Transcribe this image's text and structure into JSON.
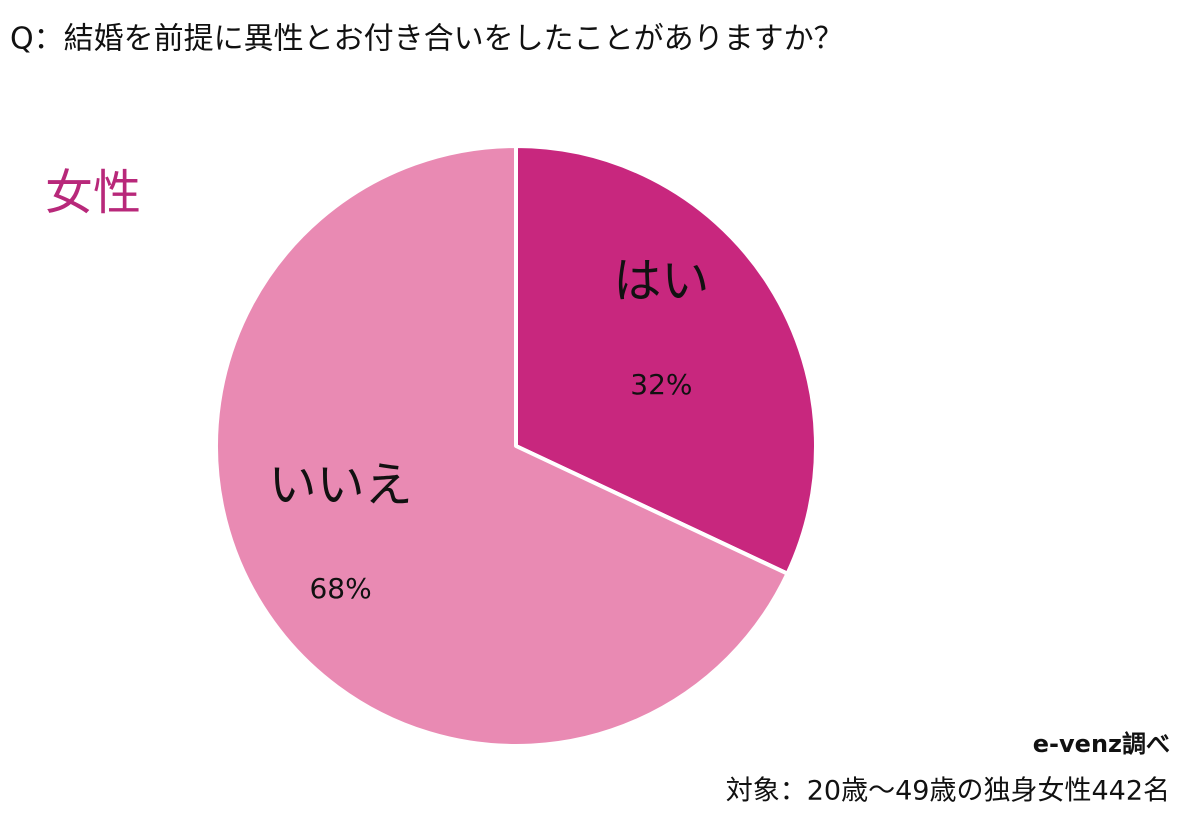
{
  "chart_data": {
    "type": "pie",
    "title": "Q：結婚を前提に異性とお付き合いをしたことがありますか？",
    "subtitle": "女性",
    "categories": [
      "はい",
      "いいえ"
    ],
    "values": [
      32,
      68
    ],
    "value_labels": [
      "32%",
      "68%"
    ],
    "colors": [
      "#c8277e",
      "#e98ab3"
    ],
    "source": "e-venz調べ",
    "note": "対象：20歳〜49歳の独身女性442名"
  }
}
